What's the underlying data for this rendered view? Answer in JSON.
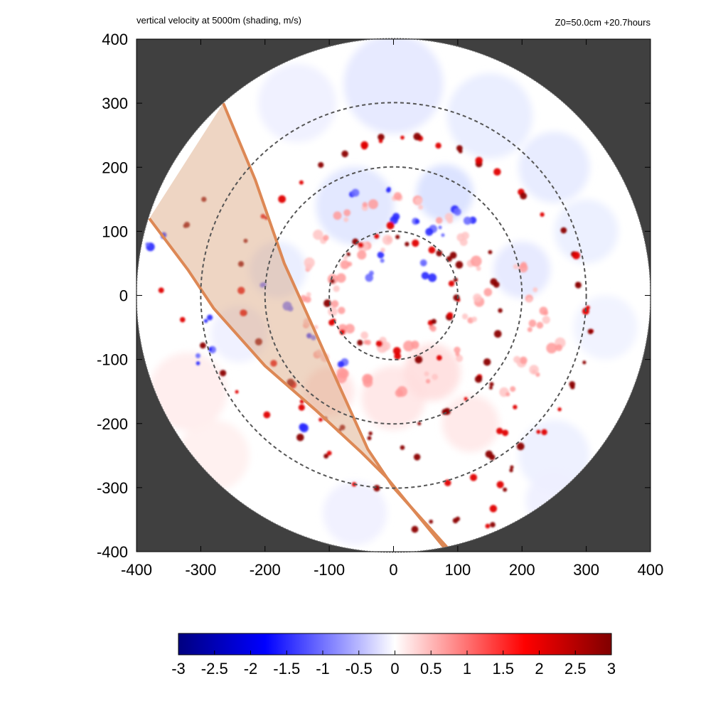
{
  "chart_data": {
    "type": "heatmap",
    "title": "vertical velocity at 5000m (shading, m/s)",
    "annotation_right": "Z0=50.0cm  +20.7hours",
    "x_ticks": [
      -400,
      -300,
      -200,
      -100,
      0,
      100,
      200,
      300,
      400
    ],
    "y_ticks": [
      -400,
      -300,
      -200,
      -100,
      0,
      100,
      200,
      300,
      400
    ],
    "xlim": [
      -400,
      400
    ],
    "ylim": [
      -400,
      400
    ],
    "domain_radius": 400,
    "reference_circles_radius": [
      100,
      200,
      300
    ],
    "colorbar": {
      "range": [
        -3,
        3
      ],
      "ticks": [
        "-3",
        "-2.5",
        "-2",
        "-1.5",
        "-1",
        "-0.5",
        "0",
        "0.5",
        "1",
        "1.5",
        "2",
        "2.5",
        "3"
      ],
      "colors": [
        "#000080",
        "#0000ff",
        "#ffffff",
        "#ff0000",
        "#800000"
      ]
    },
    "swath": {
      "outer_edge": [
        [
          -265,
          300
        ],
        [
          -215,
          180
        ],
        [
          -170,
          50
        ],
        [
          -125,
          -50
        ],
        [
          -85,
          -140
        ],
        [
          -40,
          -240
        ],
        [
          0,
          -300
        ],
        [
          85,
          -395
        ]
      ],
      "inner_edge": [
        [
          -380,
          120
        ],
        [
          -320,
          40
        ],
        [
          -280,
          -20
        ],
        [
          -200,
          -110
        ],
        [
          -120,
          -180
        ],
        [
          -50,
          -245
        ],
        [
          -10,
          -285
        ],
        [
          80,
          -395
        ]
      ],
      "fill_color": "#d9a27a",
      "line_color": "#dd8855"
    },
    "features": {
      "strong_updraft_cells": [
        [
          10,
          95
        ],
        [
          20,
          85
        ],
        [
          35,
          80
        ],
        [
          55,
          75
        ],
        [
          75,
          65
        ],
        [
          90,
          60
        ],
        [
          100,
          50
        ],
        [
          95,
          20
        ],
        [
          100,
          -5
        ],
        [
          85,
          -30
        ],
        [
          60,
          -45
        ],
        [
          70,
          -95
        ],
        [
          40,
          -100
        ],
        [
          10,
          -90
        ],
        [
          -20,
          -80
        ],
        [
          -50,
          -75
        ],
        [
          -75,
          -60
        ],
        [
          -95,
          -40
        ],
        [
          -100,
          -10
        ],
        [
          -95,
          20
        ],
        [
          -75,
          60
        ],
        [
          -55,
          80
        ],
        [
          -30,
          95
        ],
        [
          -5,
          105
        ],
        [
          150,
          70
        ],
        [
          160,
          20
        ],
        [
          165,
          -20
        ],
        [
          160,
          -60
        ],
        [
          150,
          -100
        ],
        [
          135,
          -130
        ],
        [
          110,
          -160
        ],
        [
          80,
          -185
        ],
        [
          40,
          -205
        ],
        [
          150,
          -140
        ],
        [
          185,
          -170
        ],
        [
          170,
          -210
        ],
        [
          150,
          -250
        ],
        [
          120,
          -285
        ],
        [
          80,
          -290
        ],
        [
          40,
          -255
        ],
        [
          10,
          -240
        ],
        [
          -40,
          -220
        ],
        [
          -80,
          -210
        ],
        [
          -110,
          -195
        ],
        [
          -140,
          -170
        ],
        [
          -160,
          -140
        ],
        [
          -190,
          -110
        ],
        [
          -210,
          -70
        ],
        [
          -230,
          -30
        ],
        [
          -240,
          10
        ],
        [
          -240,
          50
        ],
        [
          -230,
          90
        ],
        [
          -200,
          120
        ],
        [
          -170,
          150
        ],
        [
          -140,
          180
        ],
        [
          -110,
          200
        ],
        [
          -80,
          220
        ],
        [
          -50,
          235
        ],
        [
          -20,
          245
        ],
        [
          10,
          250
        ],
        [
          40,
          245
        ],
        [
          70,
          235
        ],
        [
          100,
          225
        ],
        [
          130,
          210
        ],
        [
          160,
          190
        ],
        [
          200,
          160
        ],
        [
          230,
          130
        ],
        [
          260,
          100
        ],
        [
          280,
          60
        ],
        [
          290,
          20
        ],
        [
          300,
          -20
        ],
        [
          310,
          -60
        ],
        [
          300,
          -100
        ],
        [
          280,
          -140
        ],
        [
          260,
          -180
        ],
        [
          230,
          -210
        ],
        [
          200,
          -240
        ],
        [
          180,
          -270
        ],
        [
          170,
          -300
        ],
        [
          160,
          -330
        ],
        [
          150,
          -360
        ],
        [
          -360,
          10
        ],
        [
          -330,
          -40
        ],
        [
          -300,
          -80
        ],
        [
          -270,
          -120
        ],
        [
          -240,
          -150
        ],
        [
          -200,
          -190
        ],
        [
          -150,
          -220
        ],
        [
          -100,
          -250
        ],
        [
          -60,
          -295
        ],
        [
          -30,
          -300
        ],
        [
          60,
          -350
        ],
        [
          100,
          -350
        ],
        [
          30,
          -370
        ],
        [
          -300,
          150
        ],
        [
          -320,
          110
        ]
      ],
      "weak_updraft_bands": [
        [
          60,
          -50
        ],
        [
          30,
          -70
        ],
        [
          -10,
          -80
        ],
        [
          -40,
          -70
        ],
        [
          -70,
          -50
        ],
        [
          -90,
          -20
        ],
        [
          -90,
          20
        ],
        [
          -70,
          50
        ],
        [
          -40,
          70
        ],
        [
          -10,
          80
        ],
        [
          120,
          -30
        ],
        [
          100,
          -90
        ],
        [
          60,
          -130
        ],
        [
          10,
          -150
        ],
        [
          -40,
          -140
        ],
        [
          -80,
          -120
        ],
        [
          -110,
          -90
        ],
        [
          -130,
          -50
        ],
        [
          -140,
          0
        ],
        [
          -130,
          50
        ],
        [
          -110,
          90
        ],
        [
          -80,
          120
        ],
        [
          -40,
          140
        ],
        [
          0,
          150
        ],
        [
          40,
          140
        ],
        [
          80,
          120
        ],
        [
          110,
          90
        ],
        [
          130,
          50
        ],
        [
          140,
          0
        ],
        [
          200,
          50
        ],
        [
          220,
          0
        ],
        [
          220,
          -50
        ],
        [
          200,
          -100
        ],
        [
          180,
          -150
        ],
        [
          220,
          -120
        ],
        [
          250,
          -80
        ],
        [
          240,
          -30
        ]
      ],
      "downdraft_cells": [
        [
          40,
          110
        ],
        [
          60,
          105
        ],
        [
          75,
          100
        ],
        [
          50,
          50
        ],
        [
          55,
          30
        ],
        [
          -20,
          60
        ],
        [
          -40,
          30
        ],
        [
          -130,
          -60
        ],
        [
          -80,
          -110
        ],
        [
          0,
          120
        ],
        [
          -160,
          -20
        ],
        [
          -200,
          20
        ],
        [
          -280,
          -80
        ],
        [
          -290,
          -40
        ],
        [
          -380,
          80
        ],
        [
          -360,
          90
        ],
        [
          -140,
          -210
        ],
        [
          -310,
          -100
        ],
        [
          120,
          120
        ],
        [
          100,
          130
        ],
        [
          -10,
          170
        ],
        [
          -60,
          160
        ]
      ]
    }
  }
}
